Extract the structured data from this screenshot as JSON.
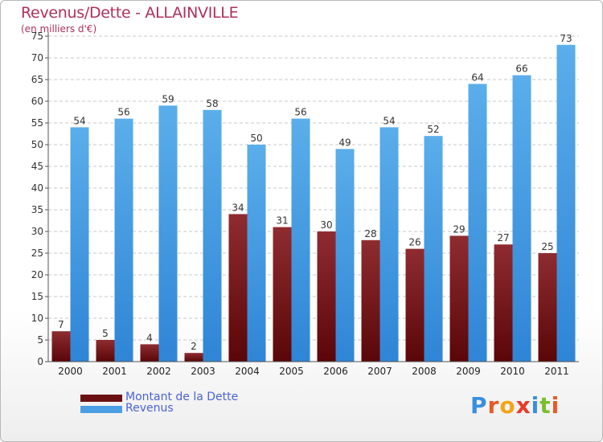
{
  "title": "Revenus/Dette - ALLAINVILLE",
  "subtitle": "(en milliers d'€)",
  "brand": {
    "letters": [
      "P",
      "r",
      "o",
      "x",
      "i",
      "t",
      "i"
    ],
    "colors": [
      "#3a8ee0",
      "#e85a24",
      "#f2a516",
      "#e63a2a",
      "#3a8ee0",
      "#7cbd2c",
      "#e85a24"
    ]
  },
  "chart_data": {
    "type": "bar",
    "title": "Revenus/Dette - ALLAINVILLE",
    "ylabel": "(en milliers d'€)",
    "xlabel": "",
    "categories": [
      "2000",
      "2001",
      "2002",
      "2003",
      "2004",
      "2005",
      "2006",
      "2007",
      "2008",
      "2009",
      "2010",
      "2011"
    ],
    "ylim": [
      0,
      75
    ],
    "yticks": [
      0,
      5,
      10,
      15,
      20,
      25,
      30,
      35,
      40,
      45,
      50,
      55,
      60,
      65,
      70,
      75
    ],
    "grid": true,
    "legend_position": "bottom-left",
    "series": [
      {
        "name": "Montant de la Dette",
        "color": "#6b1012",
        "values": [
          7,
          5,
          4,
          2,
          34,
          31,
          30,
          28,
          26,
          29,
          27,
          25
        ]
      },
      {
        "name": "Revenus",
        "color": "#4a9fe4",
        "values": [
          54,
          56,
          59,
          58,
          50,
          56,
          49,
          54,
          52,
          64,
          66,
          73
        ]
      }
    ]
  }
}
